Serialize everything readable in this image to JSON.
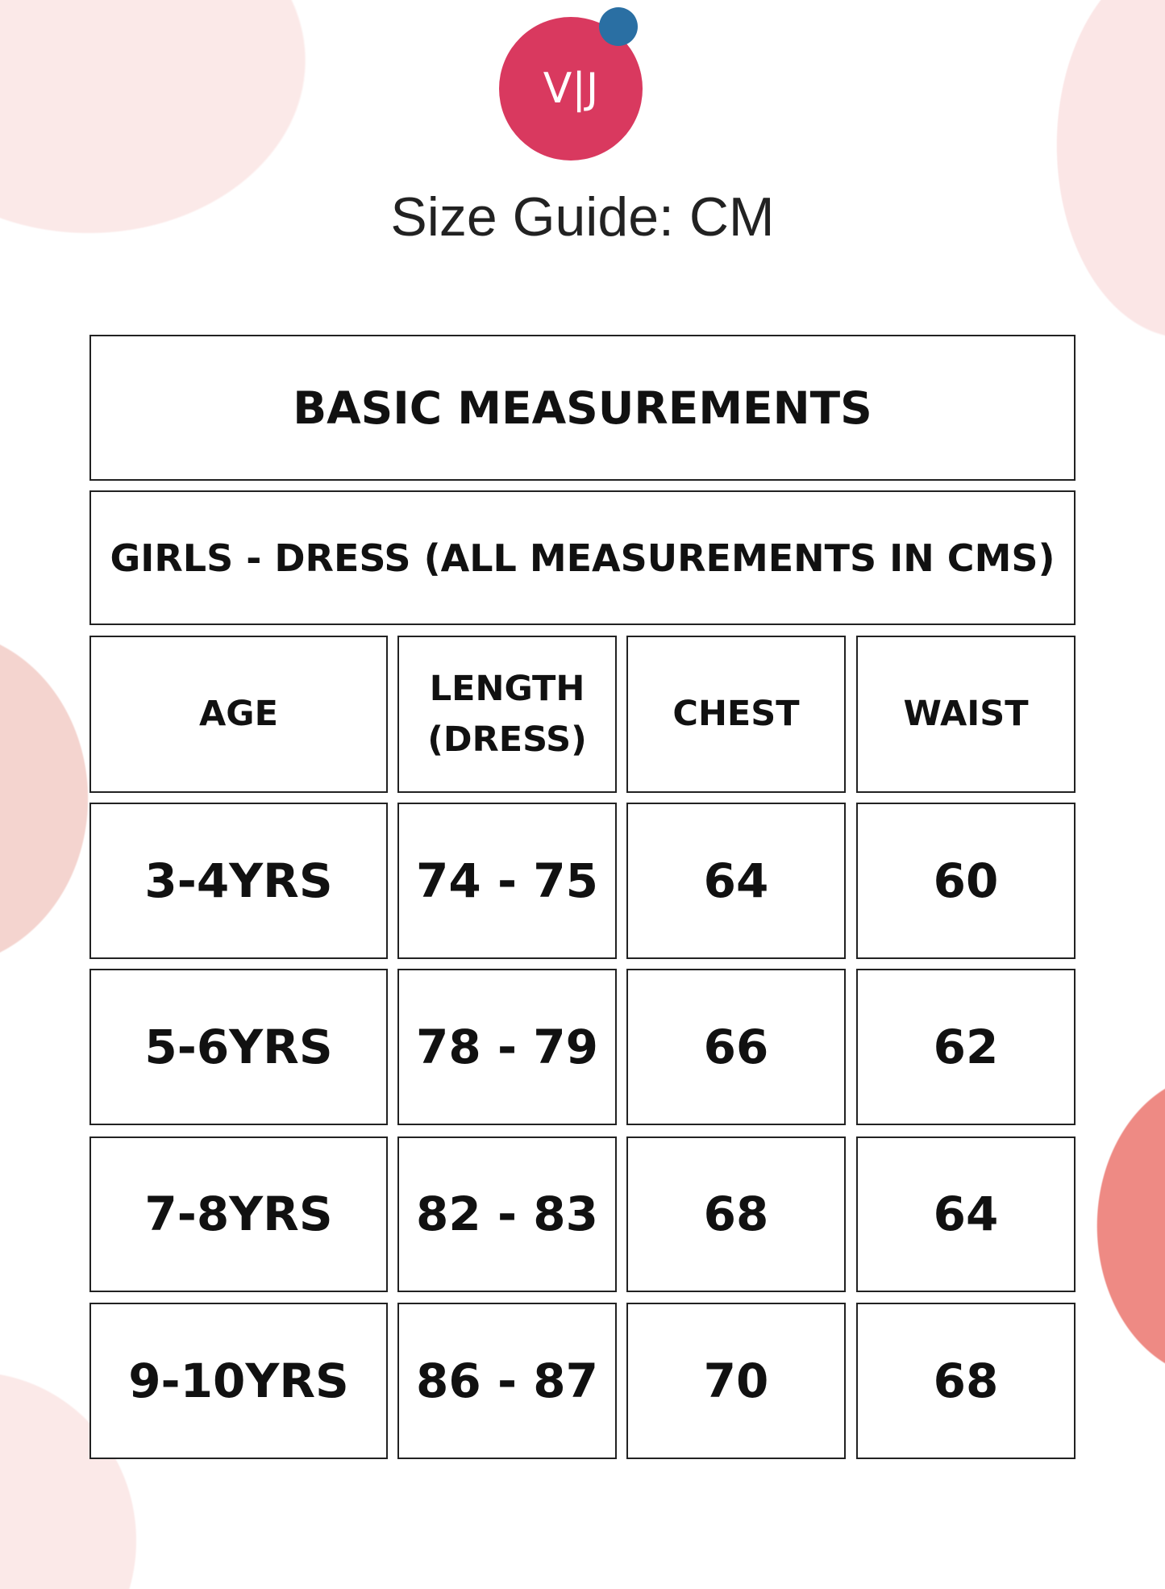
{
  "colors": {
    "logo": "#d9395f",
    "logo_dot": "#2a6fa3",
    "blob_light": "#fbe6e6",
    "blob_mid": "#f4d3cf",
    "blob_salmon": "#ee8a84"
  },
  "logo": {
    "text": "V|J"
  },
  "title": "Size Guide: CM",
  "table": {
    "heading": "BASIC MEASUREMENTS",
    "subheading": "GIRLS - DRESS (ALL MEASUREMENTS IN CMS)",
    "columns": [
      "AGE",
      "LENGTH (DRESS)",
      "CHEST",
      "WAIST"
    ],
    "rows": [
      [
        "3-4YRS",
        "74 - 75",
        "64",
        "60"
      ],
      [
        "5-6YRS",
        "78 - 79",
        "66",
        "62"
      ],
      [
        "7-8YRS",
        "82 - 83",
        "68",
        "64"
      ],
      [
        "9-10YRS",
        "86 - 87",
        "70",
        "68"
      ]
    ]
  }
}
